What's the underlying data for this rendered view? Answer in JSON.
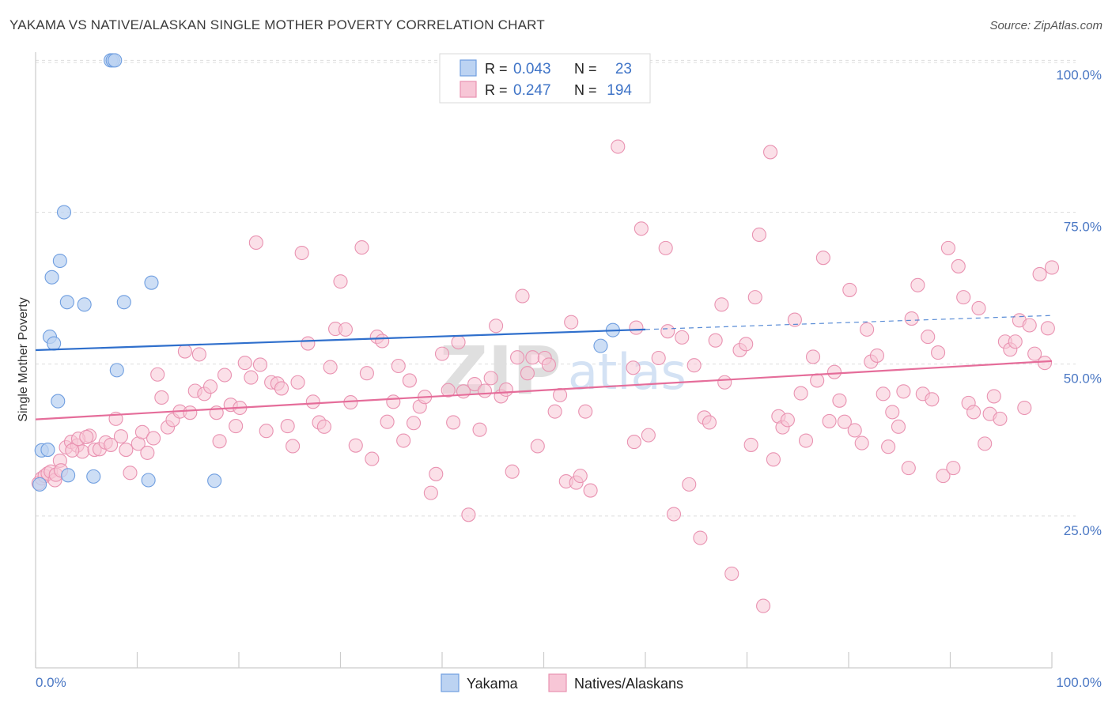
{
  "title": "YAKAMA VS NATIVE/ALASKAN SINGLE MOTHER POVERTY CORRELATION CHART",
  "source": "Source: ZipAtlas.com",
  "watermark": {
    "zip": "ZIP",
    "atlas": "atlas"
  },
  "colors": {
    "yakama_fill": "#bcd3f2",
    "yakama_stroke": "#6f9ee0",
    "yakama_line": "#2f6fcc",
    "native_fill": "#f7c6d6",
    "native_stroke": "#e992b1",
    "native_line": "#e56d9a",
    "tick_label": "#4b78c4",
    "grid": "#dddddd"
  },
  "legend": {
    "r_label": "R =",
    "n_label": "N =",
    "rows": [
      {
        "r": "0.043",
        "n": "23"
      },
      {
        "r": "0.247",
        "n": "194"
      }
    ]
  },
  "chart_data": {
    "type": "scatter",
    "title": "YAKAMA VS NATIVE/ALASKAN SINGLE MOTHER POVERTY CORRELATION CHART",
    "xlabel": "",
    "ylabel": "Single Mother Poverty",
    "xlim": [
      0,
      100
    ],
    "ylim": [
      0,
      102
    ],
    "x_tick_labels": [
      "0.0%",
      "100.0%"
    ],
    "y_ticks": [
      25,
      50,
      75,
      100
    ],
    "y_tick_labels": [
      "25.0%",
      "50.0%",
      "75.0%",
      "100.0%"
    ],
    "grid": true,
    "legend_position": "top-center",
    "series": [
      {
        "name": "Yakama",
        "trend": {
          "x": [
            0,
            60
          ],
          "y": [
            52.3,
            55.7
          ],
          "dashed_to": [
            100,
            58.0
          ]
        },
        "points": [
          [
            0.4,
            30.2
          ],
          [
            0.6,
            35.8
          ],
          [
            1.2,
            35.9
          ],
          [
            1.4,
            54.5
          ],
          [
            1.8,
            53.4
          ],
          [
            2.2,
            43.9
          ],
          [
            2.4,
            67.0
          ],
          [
            2.8,
            75.0
          ],
          [
            1.6,
            64.3
          ],
          [
            3.1,
            60.2
          ],
          [
            3.2,
            31.7
          ],
          [
            4.8,
            59.8
          ],
          [
            5.7,
            31.5
          ],
          [
            7.4,
            100.0
          ],
          [
            7.6,
            100.0
          ],
          [
            7.8,
            100.0
          ],
          [
            8.0,
            49.0
          ],
          [
            8.7,
            60.2
          ],
          [
            11.4,
            63.4
          ],
          [
            11.1,
            30.9
          ],
          [
            17.6,
            30.8
          ],
          [
            55.6,
            53.0
          ],
          [
            56.8,
            55.6
          ]
        ]
      },
      {
        "name": "Natives/Alaskans",
        "trend": {
          "x": [
            0,
            100
          ],
          "y": [
            40.9,
            50.5
          ]
        },
        "points": [
          [
            0.3,
            30.4
          ],
          [
            0.6,
            31.2
          ],
          [
            0.9,
            31.6
          ],
          [
            1.2,
            32.0
          ],
          [
            1.5,
            32.3
          ],
          [
            1.9,
            30.9
          ],
          [
            2.4,
            34.1
          ],
          [
            3.0,
            36.3
          ],
          [
            3.5,
            37.2
          ],
          [
            4.1,
            36.6
          ],
          [
            4.6,
            35.6
          ],
          [
            5.3,
            38.2
          ],
          [
            5.8,
            35.9
          ],
          [
            6.3,
            36.0
          ],
          [
            6.9,
            37.1
          ],
          [
            7.4,
            36.7
          ],
          [
            7.9,
            41.0
          ],
          [
            8.4,
            38.1
          ],
          [
            8.9,
            35.9
          ],
          [
            9.3,
            32.1
          ],
          [
            10.1,
            36.9
          ],
          [
            10.5,
            38.8
          ],
          [
            11.0,
            35.4
          ],
          [
            11.6,
            37.8
          ],
          [
            12.0,
            48.3
          ],
          [
            12.4,
            44.5
          ],
          [
            13.0,
            39.6
          ],
          [
            13.5,
            40.8
          ],
          [
            14.2,
            42.2
          ],
          [
            14.7,
            52.1
          ],
          [
            15.2,
            42.0
          ],
          [
            15.7,
            45.6
          ],
          [
            16.1,
            51.6
          ],
          [
            16.6,
            45.1
          ],
          [
            17.2,
            46.3
          ],
          [
            17.8,
            42.0
          ],
          [
            18.1,
            37.3
          ],
          [
            18.6,
            48.2
          ],
          [
            19.2,
            43.3
          ],
          [
            19.7,
            39.8
          ],
          [
            20.1,
            42.8
          ],
          [
            20.6,
            50.2
          ],
          [
            21.2,
            47.8
          ],
          [
            21.7,
            70.0
          ],
          [
            22.1,
            49.9
          ],
          [
            22.7,
            39.0
          ],
          [
            23.2,
            47.0
          ],
          [
            23.8,
            46.8
          ],
          [
            24.2,
            46.0
          ],
          [
            24.8,
            39.8
          ],
          [
            25.3,
            36.5
          ],
          [
            25.8,
            47.0
          ],
          [
            26.2,
            68.3
          ],
          [
            26.8,
            53.4
          ],
          [
            27.3,
            43.8
          ],
          [
            27.9,
            40.4
          ],
          [
            28.4,
            39.7
          ],
          [
            29.0,
            49.5
          ],
          [
            29.5,
            55.8
          ],
          [
            30.0,
            63.6
          ],
          [
            30.5,
            55.7
          ],
          [
            31.0,
            43.7
          ],
          [
            31.5,
            36.6
          ],
          [
            32.1,
            69.2
          ],
          [
            32.6,
            48.5
          ],
          [
            33.1,
            34.4
          ],
          [
            33.6,
            54.5
          ],
          [
            34.1,
            53.8
          ],
          [
            34.6,
            40.5
          ],
          [
            35.2,
            43.8
          ],
          [
            35.7,
            49.7
          ],
          [
            36.2,
            37.4
          ],
          [
            36.8,
            47.3
          ],
          [
            37.2,
            40.3
          ],
          [
            37.8,
            43.0
          ],
          [
            38.3,
            44.6
          ],
          [
            38.9,
            28.8
          ],
          [
            39.4,
            31.9
          ],
          [
            40.0,
            51.7
          ],
          [
            40.6,
            45.7
          ],
          [
            41.1,
            40.4
          ],
          [
            41.6,
            53.6
          ],
          [
            42.1,
            45.5
          ],
          [
            42.6,
            25.2
          ],
          [
            43.2,
            46.7
          ],
          [
            43.7,
            39.2
          ],
          [
            44.2,
            45.6
          ],
          [
            44.8,
            47.7
          ],
          [
            45.3,
            56.3
          ],
          [
            45.8,
            44.7
          ],
          [
            46.3,
            45.8
          ],
          [
            46.9,
            32.3
          ],
          [
            47.4,
            51.1
          ],
          [
            47.9,
            61.2
          ],
          [
            48.4,
            48.5
          ],
          [
            48.9,
            51.1
          ],
          [
            49.4,
            36.5
          ],
          [
            50.1,
            51.0
          ],
          [
            50.5,
            49.9
          ],
          [
            51.1,
            42.2
          ],
          [
            51.6,
            44.9
          ],
          [
            52.2,
            30.7
          ],
          [
            52.7,
            56.9
          ],
          [
            53.2,
            30.5
          ],
          [
            53.6,
            31.6
          ],
          [
            54.1,
            42.2
          ],
          [
            54.6,
            29.2
          ],
          [
            57.3,
            85.8
          ],
          [
            58.8,
            49.4
          ],
          [
            58.9,
            37.2
          ],
          [
            59.1,
            56.0
          ],
          [
            59.6,
            72.3
          ],
          [
            60.3,
            38.3
          ],
          [
            61.3,
            51.0
          ],
          [
            62.0,
            69.1
          ],
          [
            62.2,
            55.4
          ],
          [
            62.8,
            25.3
          ],
          [
            63.6,
            54.4
          ],
          [
            64.3,
            30.2
          ],
          [
            64.8,
            49.8
          ],
          [
            65.4,
            21.4
          ],
          [
            65.8,
            41.2
          ],
          [
            66.3,
            40.4
          ],
          [
            66.9,
            53.9
          ],
          [
            67.5,
            59.8
          ],
          [
            67.8,
            47.0
          ],
          [
            68.5,
            15.5
          ],
          [
            69.3,
            52.3
          ],
          [
            69.9,
            53.3
          ],
          [
            70.4,
            36.7
          ],
          [
            70.8,
            61.0
          ],
          [
            71.2,
            71.3
          ],
          [
            71.6,
            10.2
          ],
          [
            72.3,
            84.9
          ],
          [
            72.6,
            34.3
          ],
          [
            73.1,
            41.4
          ],
          [
            73.5,
            39.6
          ],
          [
            74.0,
            40.8
          ],
          [
            74.7,
            57.3
          ],
          [
            75.3,
            45.2
          ],
          [
            75.8,
            37.4
          ],
          [
            76.5,
            51.2
          ],
          [
            76.9,
            47.3
          ],
          [
            77.5,
            67.5
          ],
          [
            78.1,
            40.6
          ],
          [
            78.6,
            48.7
          ],
          [
            79.1,
            44.0
          ],
          [
            79.6,
            40.5
          ],
          [
            80.1,
            62.2
          ],
          [
            80.6,
            39.1
          ],
          [
            81.3,
            37.0
          ],
          [
            81.8,
            55.7
          ],
          [
            82.2,
            50.4
          ],
          [
            82.8,
            51.4
          ],
          [
            83.4,
            45.1
          ],
          [
            83.9,
            36.4
          ],
          [
            84.3,
            42.1
          ],
          [
            84.9,
            39.7
          ],
          [
            85.4,
            45.5
          ],
          [
            85.9,
            32.9
          ],
          [
            86.2,
            57.5
          ],
          [
            86.8,
            63.0
          ],
          [
            87.3,
            45.1
          ],
          [
            87.8,
            54.5
          ],
          [
            88.2,
            44.2
          ],
          [
            88.8,
            51.9
          ],
          [
            89.3,
            31.6
          ],
          [
            89.8,
            69.1
          ],
          [
            90.3,
            32.9
          ],
          [
            90.8,
            66.1
          ],
          [
            91.3,
            61.0
          ],
          [
            91.8,
            43.6
          ],
          [
            92.3,
            42.1
          ],
          [
            92.8,
            59.2
          ],
          [
            93.4,
            36.9
          ],
          [
            93.9,
            41.8
          ],
          [
            94.3,
            44.7
          ],
          [
            94.9,
            41.0
          ],
          [
            95.4,
            53.7
          ],
          [
            95.9,
            52.4
          ],
          [
            96.4,
            53.7
          ],
          [
            96.8,
            57.2
          ],
          [
            97.3,
            42.8
          ],
          [
            97.8,
            56.4
          ],
          [
            98.3,
            51.7
          ],
          [
            98.8,
            64.8
          ],
          [
            99.3,
            50.2
          ],
          [
            99.6,
            55.9
          ],
          [
            100.0,
            65.9
          ],
          [
            2.0,
            31.8
          ],
          [
            2.5,
            32.5
          ],
          [
            3.6,
            35.8
          ],
          [
            4.2,
            37.7
          ],
          [
            5.0,
            38.0
          ]
        ]
      }
    ]
  },
  "bottom_legend": [
    {
      "label": "Yakama"
    },
    {
      "label": "Natives/Alaskans"
    }
  ]
}
